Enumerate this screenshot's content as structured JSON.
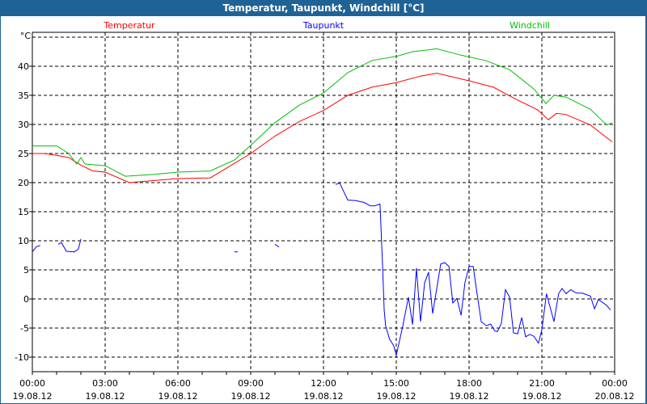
{
  "window": {
    "title": "Temperatur, Taupunkt, Windchill [°C]"
  },
  "chart_data": {
    "type": "line",
    "title": "Temperatur, Taupunkt, Windchill [°C]",
    "ylabel": "°C",
    "xlabel": "",
    "ylim": [
      -12.5,
      46
    ],
    "xlim": [
      0,
      24
    ],
    "grid": true,
    "legend_placement": "top",
    "yticks": [
      40,
      35,
      30,
      25,
      20,
      15,
      10,
      5,
      0,
      -5,
      -10
    ],
    "xticks": [
      {
        "h": 0,
        "time": "00:00",
        "date": "19.08.12"
      },
      {
        "h": 3,
        "time": "03:00",
        "date": "19.08.12"
      },
      {
        "h": 6,
        "time": "06:00",
        "date": "19.08.12"
      },
      {
        "h": 9,
        "time": "09:00",
        "date": "19.08.12"
      },
      {
        "h": 12,
        "time": "12:00",
        "date": "19.08.12"
      },
      {
        "h": 15,
        "time": "15:00",
        "date": "19.08.12"
      },
      {
        "h": 18,
        "time": "18:00",
        "date": "19.08.12"
      },
      {
        "h": 21,
        "time": "21:00",
        "date": "19.08.12"
      },
      {
        "h": 24,
        "time": "00:00",
        "date": "20.08.12"
      }
    ],
    "series": [
      {
        "name": "Temperatur",
        "color": "#ff0000",
        "points": [
          [
            0,
            25
          ],
          [
            0.5,
            25
          ],
          [
            1,
            24.7
          ],
          [
            1.5,
            24.3
          ],
          [
            2,
            23
          ],
          [
            2.5,
            22
          ],
          [
            3,
            21.8
          ],
          [
            4,
            20
          ],
          [
            6,
            20.7
          ],
          [
            7.33,
            20.8
          ],
          [
            9,
            25
          ],
          [
            10,
            28
          ],
          [
            11,
            30.5
          ],
          [
            12,
            32.4
          ],
          [
            13,
            35
          ],
          [
            14,
            36.4
          ],
          [
            15,
            37.2
          ],
          [
            16,
            38.3
          ],
          [
            16.67,
            38.8
          ],
          [
            18,
            37.5
          ],
          [
            19,
            36.4
          ],
          [
            20,
            34.2
          ],
          [
            20.83,
            32.5
          ],
          [
            21.27,
            30.8
          ],
          [
            21.6,
            31.9
          ],
          [
            22,
            31.7
          ],
          [
            23,
            29.9
          ],
          [
            23.9,
            27
          ]
        ]
      },
      {
        "name": "Taupunkt",
        "color": "#0000ff",
        "points": [
          [
            0,
            8.1
          ],
          [
            0.17,
            9
          ],
          [
            0.33,
            9.2
          ],
          null,
          [
            1.07,
            9.4
          ],
          [
            1.2,
            9.7
          ],
          [
            1.4,
            8.2
          ],
          [
            1.73,
            8.1
          ],
          [
            1.9,
            8.6
          ],
          [
            2,
            10.3
          ],
          null,
          [
            8.33,
            8.1
          ],
          [
            8.47,
            8.1
          ],
          null,
          [
            10,
            9.4
          ],
          [
            10.17,
            8.9
          ],
          null,
          [
            12.5,
            19.7
          ],
          [
            12.67,
            19.9
          ],
          [
            13,
            17
          ],
          [
            13.33,
            16.9
          ],
          [
            13.67,
            16.6
          ],
          [
            13.93,
            16
          ],
          [
            14.1,
            16
          ],
          [
            14.33,
            16.3
          ],
          [
            14.39,
            10.2
          ],
          [
            14.43,
            6.25
          ],
          [
            14.5,
            -1.8
          ],
          [
            14.56,
            -4.6
          ],
          [
            14.72,
            -6.9
          ],
          [
            14.89,
            -8
          ],
          [
            15,
            -9.7
          ],
          [
            15.27,
            -4.6
          ],
          [
            15.5,
            0.3
          ],
          [
            15.67,
            -4.4
          ],
          [
            15.83,
            5.3
          ],
          [
            16,
            -3.9
          ],
          [
            16.17,
            2.8
          ],
          [
            16.33,
            4.6
          ],
          [
            16.5,
            -2.5
          ],
          [
            16.67,
            1.85
          ],
          [
            16.83,
            6
          ],
          [
            17,
            6.25
          ],
          [
            17.17,
            5.6
          ],
          [
            17.33,
            -0.7
          ],
          [
            17.5,
            0.1
          ],
          [
            17.67,
            -2.8
          ],
          [
            17.83,
            2.8
          ],
          [
            18,
            5.6
          ],
          [
            18.17,
            5.6
          ],
          [
            18.33,
            0.9
          ],
          [
            18.5,
            -3.9
          ],
          [
            18.72,
            -4.6
          ],
          [
            18.89,
            -4.3
          ],
          [
            19.06,
            -5.5
          ],
          [
            19.17,
            -5.6
          ],
          [
            19.33,
            -4.2
          ],
          [
            19.5,
            1.6
          ],
          [
            19.67,
            0.3
          ],
          [
            19.83,
            -5.8
          ],
          [
            20,
            -6
          ],
          [
            20.17,
            -3.2
          ],
          [
            20.33,
            -6.5
          ],
          [
            20.5,
            -6.1
          ],
          [
            20.67,
            -6.4
          ],
          [
            20.86,
            -7.6
          ],
          [
            21,
            -5.3
          ],
          [
            21.19,
            0.9
          ],
          [
            21.43,
            -2.8
          ],
          [
            21.5,
            -3.9
          ],
          [
            21.69,
            0.9
          ],
          [
            21.83,
            1.8
          ],
          [
            22,
            0.9
          ],
          [
            22.19,
            1.6
          ],
          [
            22.43,
            1
          ],
          [
            22.67,
            1
          ],
          [
            23,
            0.5
          ],
          [
            23.17,
            -1.7
          ],
          [
            23.33,
            -0.1
          ],
          [
            23.67,
            -1.1
          ],
          [
            23.83,
            -1.9
          ]
        ]
      },
      {
        "name": "Windchill",
        "color": "#00c000",
        "points": [
          [
            0,
            26.3
          ],
          [
            1,
            26.3
          ],
          [
            1.5,
            25
          ],
          [
            1.83,
            23.2
          ],
          [
            2,
            24.3
          ],
          [
            2.17,
            23.2
          ],
          [
            3,
            22.9
          ],
          [
            3.83,
            21.1
          ],
          [
            5,
            21.4
          ],
          [
            6,
            21.8
          ],
          [
            7.33,
            22
          ],
          [
            8.33,
            23.9
          ],
          [
            9,
            26.4
          ],
          [
            10,
            30.3
          ],
          [
            11,
            33.3
          ],
          [
            12,
            35.4
          ],
          [
            13,
            38.9
          ],
          [
            14,
            41
          ],
          [
            15,
            41.7
          ],
          [
            15.67,
            42.5
          ],
          [
            16.67,
            43
          ],
          [
            17.67,
            41.9
          ],
          [
            18.67,
            41
          ],
          [
            19.67,
            39.4
          ],
          [
            20.67,
            36.1
          ],
          [
            21.17,
            33.6
          ],
          [
            21.5,
            35
          ],
          [
            22,
            34.7
          ],
          [
            23,
            32.6
          ],
          [
            23.67,
            29.9
          ],
          [
            23.9,
            30.3
          ]
        ]
      }
    ]
  }
}
